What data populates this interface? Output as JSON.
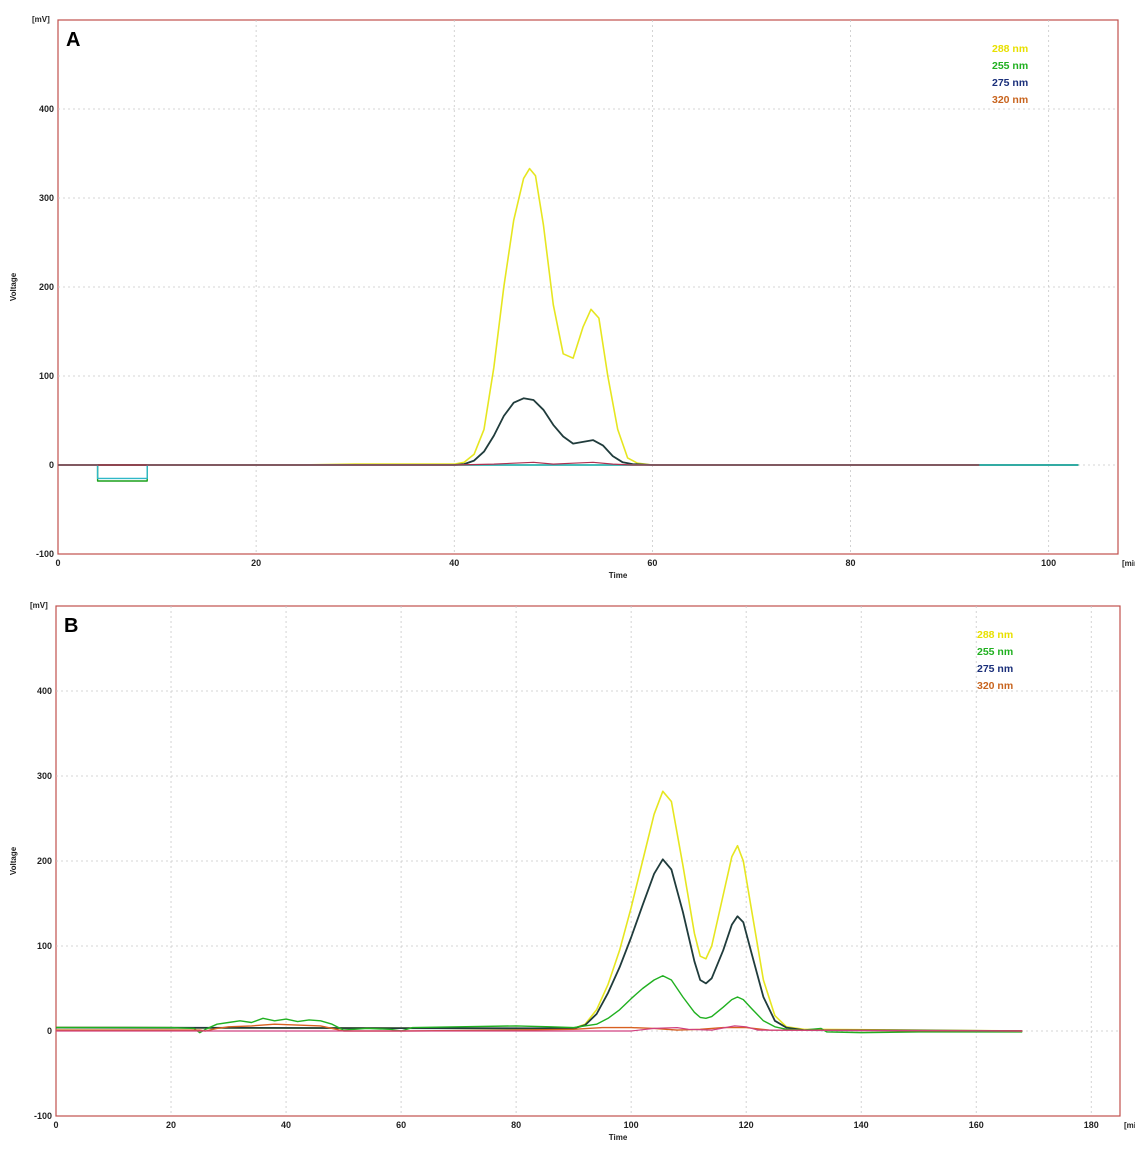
{
  "chart_data": [
    {
      "type": "line",
      "panel_label": "A",
      "xlabel": "Time",
      "ylabel": "Voltage",
      "x_unit": "[min.]",
      "y_unit": "[mV]",
      "xlim": [
        0,
        107
      ],
      "ylim": [
        -100,
        500
      ],
      "xticks": [
        0,
        20,
        40,
        60,
        80,
        100
      ],
      "yticks": [
        -100,
        0,
        100,
        200,
        300,
        400
      ],
      "grid": true,
      "legend_position": "top-right",
      "legend": [
        {
          "label": "288 nm",
          "color": "#e8e000"
        },
        {
          "label": "255 nm",
          "color": "#20b020"
        },
        {
          "label": "275 nm",
          "color": "#1a2f7a"
        },
        {
          "label": "320 nm",
          "color": "#c8641e"
        }
      ],
      "series": [
        {
          "color": "#e6e620",
          "width": 1.6,
          "points": [
            [
              0,
              0
            ],
            [
              24,
              0
            ],
            [
              30,
              1
            ],
            [
              38,
              1
            ],
            [
              40,
              1
            ],
            [
              41,
              3
            ],
            [
              42,
              12
            ],
            [
              43,
              40
            ],
            [
              44,
              110
            ],
            [
              45,
              200
            ],
            [
              46,
              275
            ],
            [
              47,
              322
            ],
            [
              47.6,
              333
            ],
            [
              48.2,
              325
            ],
            [
              49,
              270
            ],
            [
              50,
              180
            ],
            [
              51,
              125
            ],
            [
              52,
              120
            ],
            [
              53,
              155
            ],
            [
              53.8,
              175
            ],
            [
              54.6,
              165
            ],
            [
              55.5,
              100
            ],
            [
              56.5,
              40
            ],
            [
              57.5,
              8
            ],
            [
              58.5,
              2
            ],
            [
              60,
              0
            ],
            [
              103,
              0
            ]
          ]
        },
        {
          "color": "#203c3c",
          "width": 1.8,
          "points": [
            [
              0,
              0
            ],
            [
              40,
              0
            ],
            [
              41,
              1
            ],
            [
              42,
              5
            ],
            [
              43,
              15
            ],
            [
              44,
              33
            ],
            [
              45,
              55
            ],
            [
              46,
              70
            ],
            [
              47,
              75
            ],
            [
              48,
              73
            ],
            [
              49,
              62
            ],
            [
              50,
              45
            ],
            [
              51,
              32
            ],
            [
              52,
              24
            ],
            [
              53,
              26
            ],
            [
              54,
              28
            ],
            [
              55,
              22
            ],
            [
              56,
              10
            ],
            [
              57,
              3
            ],
            [
              58,
              1
            ],
            [
              60,
              0
            ],
            [
              103,
              0
            ]
          ]
        },
        {
          "color": "#1aa01a",
          "width": 1.4,
          "points": [
            [
              0,
              0
            ],
            [
              4,
              0
            ],
            [
              4,
              -18
            ],
            [
              9,
              -18
            ],
            [
              9,
              0
            ],
            [
              103,
              0
            ]
          ]
        },
        {
          "color": "#30b8c8",
          "width": 1.4,
          "points": [
            [
              0,
              0
            ],
            [
              4,
              0
            ],
            [
              4,
              -15
            ],
            [
              9,
              -15
            ],
            [
              9,
              0
            ],
            [
              103,
              0
            ]
          ]
        },
        {
          "color": "#b03050",
          "width": 1.2,
          "points": [
            [
              0,
              0
            ],
            [
              40,
              0
            ],
            [
              44,
              1
            ],
            [
              48,
              3
            ],
            [
              50,
              1
            ],
            [
              52,
              2
            ],
            [
              54,
              3
            ],
            [
              56,
              1
            ],
            [
              58,
              0
            ],
            [
              93,
              0
            ]
          ]
        }
      ]
    },
    {
      "type": "line",
      "panel_label": "B",
      "xlabel": "Time",
      "ylabel": "Voltage",
      "x_unit": "[min.]",
      "y_unit": "[mV]",
      "xlim": [
        0,
        185
      ],
      "ylim": [
        -100,
        500
      ],
      "xticks": [
        0,
        20,
        40,
        60,
        80,
        100,
        120,
        140,
        160,
        180
      ],
      "yticks": [
        -100,
        0,
        100,
        200,
        300,
        400
      ],
      "grid": true,
      "legend_position": "top-right",
      "legend": [
        {
          "label": "288 nm",
          "color": "#e8e000"
        },
        {
          "label": "255 nm",
          "color": "#20b020"
        },
        {
          "label": "275 nm",
          "color": "#1a2f7a"
        },
        {
          "label": "320 nm",
          "color": "#c8641e"
        }
      ],
      "series": [
        {
          "color": "#e6e620",
          "width": 1.6,
          "points": [
            [
              0,
              4
            ],
            [
              90,
              3
            ],
            [
              92,
              8
            ],
            [
              94,
              25
            ],
            [
              96,
              55
            ],
            [
              98,
              95
            ],
            [
              100,
              145
            ],
            [
              102,
              200
            ],
            [
              104,
              255
            ],
            [
              105.5,
              282
            ],
            [
              107,
              270
            ],
            [
              109,
              195
            ],
            [
              111,
              115
            ],
            [
              112,
              88
            ],
            [
              113,
              85
            ],
            [
              114,
              100
            ],
            [
              116,
              160
            ],
            [
              117.5,
              205
            ],
            [
              118.5,
              218
            ],
            [
              119.5,
              200
            ],
            [
              121,
              140
            ],
            [
              123,
              60
            ],
            [
              125,
              18
            ],
            [
              127,
              5
            ],
            [
              130,
              2
            ],
            [
              168,
              0
            ]
          ]
        },
        {
          "color": "#203c3c",
          "width": 1.8,
          "points": [
            [
              0,
              4
            ],
            [
              90,
              3
            ],
            [
              92,
              7
            ],
            [
              94,
              20
            ],
            [
              96,
              45
            ],
            [
              98,
              75
            ],
            [
              100,
              110
            ],
            [
              102,
              148
            ],
            [
              104,
              185
            ],
            [
              105.5,
              202
            ],
            [
              107,
              190
            ],
            [
              109,
              140
            ],
            [
              111,
              82
            ],
            [
              112,
              60
            ],
            [
              113,
              56
            ],
            [
              114,
              62
            ],
            [
              116,
              95
            ],
            [
              117.5,
              125
            ],
            [
              118.5,
              135
            ],
            [
              119.5,
              128
            ],
            [
              121,
              90
            ],
            [
              123,
              40
            ],
            [
              125,
              12
            ],
            [
              127,
              4
            ],
            [
              130,
              1
            ],
            [
              168,
              0
            ]
          ]
        },
        {
          "color": "#20b020",
          "width": 1.4,
          "points": [
            [
              0,
              4
            ],
            [
              20,
              4
            ],
            [
              24,
              3
            ],
            [
              25,
              -2
            ],
            [
              26,
              2
            ],
            [
              28,
              8
            ],
            [
              30,
              10
            ],
            [
              32,
              12
            ],
            [
              34,
              10
            ],
            [
              36,
              15
            ],
            [
              38,
              12
            ],
            [
              40,
              14
            ],
            [
              42,
              11
            ],
            [
              44,
              13
            ],
            [
              46,
              12
            ],
            [
              48,
              8
            ],
            [
              50,
              1
            ],
            [
              54,
              3
            ],
            [
              58,
              2
            ],
            [
              60,
              0
            ],
            [
              62,
              4
            ],
            [
              70,
              5
            ],
            [
              80,
              6
            ],
            [
              86,
              5
            ],
            [
              90,
              4
            ],
            [
              94,
              8
            ],
            [
              96,
              15
            ],
            [
              98,
              25
            ],
            [
              100,
              38
            ],
            [
              102,
              50
            ],
            [
              104,
              60
            ],
            [
              105.5,
              65
            ],
            [
              107,
              60
            ],
            [
              109,
              40
            ],
            [
              111,
              22
            ],
            [
              112,
              16
            ],
            [
              113,
              15
            ],
            [
              114,
              17
            ],
            [
              116,
              28
            ],
            [
              117.5,
              37
            ],
            [
              118.5,
              40
            ],
            [
              119.5,
              37
            ],
            [
              121,
              26
            ],
            [
              123,
              12
            ],
            [
              125,
              5
            ],
            [
              127,
              2
            ],
            [
              130,
              1
            ],
            [
              133,
              3
            ],
            [
              134,
              -1
            ],
            [
              140,
              -2
            ],
            [
              150,
              -1
            ],
            [
              168,
              -1
            ]
          ]
        },
        {
          "color": "#d86020",
          "width": 1.4,
          "points": [
            [
              0,
              1
            ],
            [
              25,
              1
            ],
            [
              26,
              0
            ],
            [
              28,
              3
            ],
            [
              30,
              5
            ],
            [
              34,
              6
            ],
            [
              38,
              8
            ],
            [
              42,
              7
            ],
            [
              46,
              6
            ],
            [
              48,
              3
            ],
            [
              50,
              0
            ],
            [
              60,
              0
            ],
            [
              80,
              1
            ],
            [
              90,
              2
            ],
            [
              95,
              4
            ],
            [
              100,
              4
            ],
            [
              104,
              3
            ],
            [
              108,
              1
            ],
            [
              112,
              2
            ],
            [
              116,
              4
            ],
            [
              120,
              4
            ],
            [
              124,
              1
            ],
            [
              168,
              0
            ]
          ]
        },
        {
          "color": "#d04080",
          "width": 1.2,
          "points": [
            [
              0,
              0
            ],
            [
              100,
              0
            ],
            [
              104,
              3
            ],
            [
              108,
              4
            ],
            [
              110,
              2
            ],
            [
              114,
              1
            ],
            [
              118,
              6
            ],
            [
              120,
              5
            ],
            [
              122,
              1
            ],
            [
              168,
              0
            ]
          ]
        }
      ]
    }
  ]
}
